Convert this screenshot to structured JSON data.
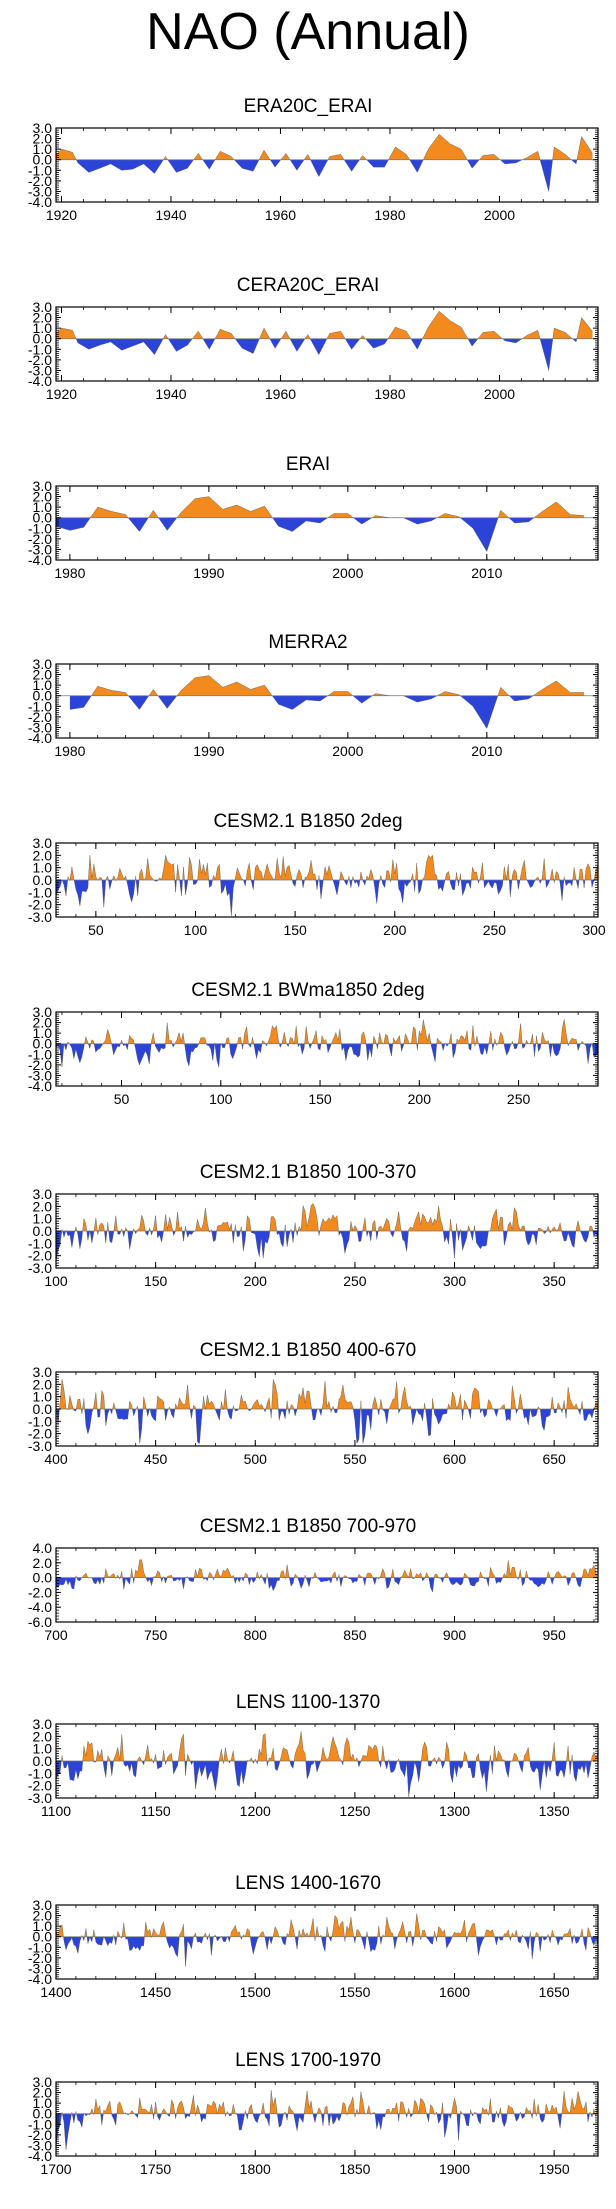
{
  "title": "NAO (Annual)",
  "colors": {
    "positive": "#f28a1e",
    "negative": "#2b43d6",
    "axis": "#000000"
  },
  "chart_data": [
    {
      "type": "area",
      "title": "ERA20C_ERAI",
      "xlim": [
        1919,
        2018
      ],
      "xticks": [
        1920,
        1940,
        1960,
        1980,
        2000
      ],
      "ylim": [
        -4.0,
        3.0
      ],
      "yticks": [
        "3.0",
        "2.0",
        "1.0",
        "0.0",
        "-1.0",
        "-2.0",
        "-3.0",
        "-4.0"
      ],
      "series": {
        "x": [
          1919,
          1920,
          1922,
          1923,
          1925,
          1927,
          1929,
          1931,
          1933,
          1935,
          1937,
          1939,
          1941,
          1943,
          1945,
          1947,
          1949,
          1951,
          1953,
          1955,
          1957,
          1959,
          1961,
          1963,
          1965,
          1967,
          1969,
          1971,
          1973,
          1975,
          1977,
          1979,
          1981,
          1983,
          1985,
          1987,
          1989,
          1991,
          1993,
          1995,
          1997,
          1999,
          2001,
          2003,
          2005,
          2007,
          2009,
          2010,
          2012,
          2014,
          2015,
          2017
        ],
        "values": [
          0.4,
          1.0,
          0.7,
          -0.3,
          -1.2,
          -0.8,
          -0.4,
          -1.0,
          -0.9,
          -0.4,
          -1.3,
          0.3,
          -1.2,
          -0.8,
          0.6,
          -0.9,
          0.8,
          0.3,
          -0.8,
          -1.1,
          0.9,
          -0.7,
          0.6,
          -1.0,
          0.5,
          -1.6,
          0.3,
          0.5,
          -1.1,
          0.4,
          -0.7,
          -0.7,
          1.2,
          0.5,
          -1.2,
          1.0,
          2.4,
          1.5,
          1.0,
          -0.8,
          0.4,
          0.5,
          -0.4,
          -0.3,
          0.2,
          0.8,
          -3.0,
          1.2,
          0.5,
          -0.4,
          2.2,
          0.6
        ]
      }
    },
    {
      "type": "area",
      "title": "CERA20C_ERAI",
      "xlim": [
        1919,
        2018
      ],
      "xticks": [
        1920,
        1940,
        1960,
        1980,
        2000
      ],
      "ylim": [
        -4.0,
        3.0
      ],
      "yticks": [
        "3.0",
        "2.0",
        "1.0",
        "0.0",
        "-1.0",
        "-2.0",
        "-3.0",
        "-4.0"
      ],
      "series": {
        "x": [
          1919,
          1920,
          1922,
          1923,
          1925,
          1927,
          1929,
          1931,
          1933,
          1935,
          1937,
          1939,
          1941,
          1943,
          1945,
          1947,
          1949,
          1951,
          1953,
          1955,
          1957,
          1959,
          1961,
          1963,
          1965,
          1967,
          1969,
          1971,
          1973,
          1975,
          1977,
          1979,
          1981,
          1983,
          1985,
          1987,
          1989,
          1991,
          1993,
          1995,
          1997,
          1999,
          2001,
          2003,
          2005,
          2007,
          2009,
          2010,
          2012,
          2014,
          2015,
          2017
        ],
        "values": [
          0.5,
          1.0,
          0.8,
          -0.4,
          -1.0,
          -0.6,
          -0.3,
          -1.1,
          -0.7,
          -0.3,
          -1.5,
          0.4,
          -1.2,
          -0.6,
          0.7,
          -1.0,
          0.9,
          0.5,
          -0.9,
          -1.4,
          1.0,
          -0.9,
          0.7,
          -1.2,
          0.4,
          -1.5,
          0.5,
          0.7,
          -1.0,
          0.3,
          -0.9,
          -0.5,
          1.1,
          0.7,
          -1.0,
          1.1,
          2.6,
          1.7,
          1.1,
          -0.7,
          0.6,
          0.7,
          -0.2,
          -0.4,
          0.3,
          0.8,
          -3.0,
          1.0,
          0.6,
          -0.3,
          2.0,
          0.7
        ]
      }
    },
    {
      "type": "area",
      "title": "ERAI",
      "xlim": [
        1979,
        2018
      ],
      "xticks": [
        1980,
        1990,
        2000,
        2010
      ],
      "ylim": [
        -4.0,
        3.0
      ],
      "yticks": [
        "3.0",
        "2.0",
        "1.0",
        "0.0",
        "-1.0",
        "-2.0",
        "-3.0",
        "-4.0"
      ],
      "series": {
        "x": [
          1979,
          1980,
          1981,
          1982,
          1983,
          1984,
          1985,
          1986,
          1987,
          1988,
          1989,
          1990,
          1991,
          1992,
          1993,
          1994,
          1995,
          1996,
          1997,
          1998,
          1999,
          2000,
          2001,
          2002,
          2003,
          2004,
          2005,
          2006,
          2007,
          2008,
          2009,
          2010,
          2011,
          2012,
          2013,
          2014,
          2015,
          2016,
          2017
        ],
        "values": [
          -0.8,
          -1.2,
          -0.9,
          1.0,
          0.6,
          0.3,
          -1.3,
          0.7,
          -1.2,
          0.5,
          1.8,
          2.0,
          0.8,
          1.2,
          0.6,
          1.1,
          -0.8,
          -1.3,
          -0.3,
          -0.5,
          0.4,
          0.4,
          -0.6,
          0.2,
          0.0,
          0.0,
          -0.6,
          -0.3,
          0.4,
          0.1,
          -1.0,
          -3.2,
          0.7,
          -0.5,
          -0.4,
          0.6,
          1.5,
          0.3,
          0.2
        ]
      }
    },
    {
      "type": "area",
      "title": "MERRA2",
      "xlim": [
        1979,
        2018
      ],
      "xticks": [
        1980,
        1990,
        2000,
        2010
      ],
      "ylim": [
        -4.0,
        3.0
      ],
      "yticks": [
        "3.0",
        "2.0",
        "1.0",
        "0.0",
        "-1.0",
        "-2.0",
        "-3.0",
        "-4.0"
      ],
      "series": {
        "x": [
          1980,
          1981,
          1982,
          1983,
          1984,
          1985,
          1986,
          1987,
          1988,
          1989,
          1990,
          1991,
          1992,
          1993,
          1994,
          1995,
          1996,
          1997,
          1998,
          1999,
          2000,
          2001,
          2002,
          2003,
          2004,
          2005,
          2006,
          2007,
          2008,
          2009,
          2010,
          2011,
          2012,
          2013,
          2014,
          2015,
          2016,
          2017
        ],
        "values": [
          -1.3,
          -1.1,
          0.9,
          0.5,
          0.3,
          -1.3,
          0.6,
          -1.2,
          0.5,
          1.7,
          1.9,
          0.8,
          1.3,
          0.6,
          1.0,
          -0.8,
          -1.3,
          -0.4,
          -0.5,
          0.4,
          0.4,
          -0.7,
          0.2,
          0.0,
          0.0,
          -0.6,
          -0.3,
          0.4,
          0.1,
          -1.0,
          -3.1,
          0.8,
          -0.5,
          -0.3,
          0.6,
          1.4,
          0.3,
          0.3
        ]
      }
    },
    {
      "type": "area",
      "title": "CESM2.1 B1850 2deg",
      "xlim": [
        30,
        302
      ],
      "xticks": [
        50,
        100,
        150,
        200,
        250,
        300
      ],
      "ylim": [
        -3.0,
        3.0
      ],
      "yticks": [
        "3.0",
        "2.0",
        "1.0",
        "0.0",
        "-1.0",
        "-2.0",
        "-3.0"
      ],
      "series": {
        "seed": 11,
        "start": 30,
        "end": 302,
        "amplitude": 1.0,
        "min_value": -2.9,
        "max_value": 2.0
      }
    },
    {
      "type": "area",
      "title": "CESM2.1 BWma1850 2deg",
      "xlim": [
        17,
        290
      ],
      "xticks": [
        50,
        100,
        150,
        200,
        250
      ],
      "ylim": [
        -4.0,
        3.0
      ],
      "yticks": [
        "3.0",
        "2.0",
        "1.0",
        "0.0",
        "-1.0",
        "-2.0",
        "-3.0",
        "-4.0"
      ],
      "series": {
        "seed": 23,
        "start": 17,
        "end": 290,
        "amplitude": 1.0,
        "min_value": -3.0,
        "max_value": 2.7
      }
    },
    {
      "type": "area",
      "title": "CESM2.1 B1850 100-370",
      "xlim": [
        100,
        372
      ],
      "xticks": [
        100,
        150,
        200,
        250,
        300,
        350
      ],
      "ylim": [
        -3.0,
        3.0
      ],
      "yticks": [
        "3.0",
        "2.0",
        "1.0",
        "0.0",
        "-1.0",
        "-2.0",
        "-3.0"
      ],
      "series": {
        "seed": 37,
        "start": 100,
        "end": 372,
        "amplitude": 1.0,
        "min_value": -2.5,
        "max_value": 2.6
      }
    },
    {
      "type": "area",
      "title": "CESM2.1 B1850 400-670",
      "xlim": [
        400,
        672
      ],
      "xticks": [
        400,
        450,
        500,
        550,
        600,
        650
      ],
      "ylim": [
        -3.0,
        3.0
      ],
      "yticks": [
        "3.0",
        "2.0",
        "1.0",
        "0.0",
        "-1.0",
        "-2.0",
        "-3.0"
      ],
      "series": {
        "seed": 41,
        "start": 400,
        "end": 672,
        "amplitude": 1.0,
        "min_value": -2.8,
        "max_value": 2.4
      }
    },
    {
      "type": "area",
      "title": "CESM2.1 B1850 700-970",
      "xlim": [
        700,
        972
      ],
      "xticks": [
        700,
        750,
        800,
        850,
        900,
        950
      ],
      "ylim": [
        -6.0,
        4.0
      ],
      "yticks": [
        "4.0",
        "2.0",
        "0.0",
        "-2.0",
        "-4.0",
        "-6.0"
      ],
      "series": {
        "seed": 53,
        "start": 700,
        "end": 972,
        "amplitude": 0.9,
        "min_value": -2.8,
        "max_value": 2.4
      }
    },
    {
      "type": "area",
      "title": "LENS 1100-1370",
      "xlim": [
        1100,
        1372
      ],
      "xticks": [
        1100,
        1150,
        1200,
        1250,
        1300,
        1350
      ],
      "ylim": [
        -3.0,
        3.0
      ],
      "yticks": [
        "3.0",
        "2.0",
        "1.0",
        "0.0",
        "-1.0",
        "-2.0",
        "-3.0"
      ],
      "series": {
        "seed": 67,
        "start": 1100,
        "end": 1372,
        "amplitude": 1.0,
        "min_value": -2.9,
        "max_value": 2.4
      }
    },
    {
      "type": "area",
      "title": "LENS 1400-1670",
      "xlim": [
        1400,
        1672
      ],
      "xticks": [
        1400,
        1450,
        1500,
        1550,
        1600,
        1650
      ],
      "ylim": [
        -4.0,
        3.0
      ],
      "yticks": [
        "3.0",
        "2.0",
        "1.0",
        "0.0",
        "-1.0",
        "-2.0",
        "-3.0",
        "-4.0"
      ],
      "series": {
        "seed": 79,
        "start": 1400,
        "end": 1672,
        "amplitude": 1.0,
        "min_value": -3.4,
        "max_value": 2.2
      }
    },
    {
      "type": "area",
      "title": "LENS 1700-1970",
      "xlim": [
        1700,
        1972
      ],
      "xticks": [
        1700,
        1750,
        1800,
        1850,
        1900,
        1950
      ],
      "ylim": [
        -4.0,
        3.0
      ],
      "yticks": [
        "3.0",
        "2.0",
        "1.0",
        "0.0",
        "-1.0",
        "-2.0",
        "-3.0",
        "-4.0"
      ],
      "series": {
        "seed": 97,
        "start": 1700,
        "end": 1972,
        "amplitude": 1.0,
        "min_value": -3.4,
        "max_value": 2.4
      }
    }
  ]
}
